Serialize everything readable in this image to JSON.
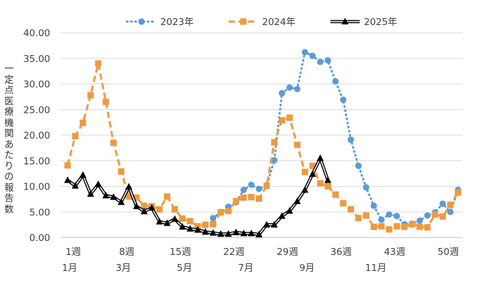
{
  "chart_data": {
    "type": "line",
    "ylabel": "一定点医療機関あたりの報告数",
    "ylim": [
      0,
      40
    ],
    "yticks": [
      "0.00",
      "5.00",
      "10.00",
      "15.00",
      "20.00",
      "25.00",
      "30.00",
      "35.00",
      "40.00"
    ],
    "xlim": [
      1,
      52
    ],
    "week_ticks": [
      {
        "week": 1,
        "label": "1週"
      },
      {
        "week": 8,
        "label": "8週"
      },
      {
        "week": 15,
        "label": "15週"
      },
      {
        "week": 22,
        "label": "22週"
      },
      {
        "week": 29,
        "label": "29週"
      },
      {
        "week": 36,
        "label": "36週"
      },
      {
        "week": 43,
        "label": "43週"
      },
      {
        "week": 50,
        "label": "50週"
      }
    ],
    "month_ticks": [
      {
        "week": 1,
        "label": "1月"
      },
      {
        "week": 8,
        "label": "3月"
      },
      {
        "week": 16,
        "label": "5月"
      },
      {
        "week": 24,
        "label": "7月"
      },
      {
        "week": 32,
        "label": "9月"
      },
      {
        "week": 41,
        "label": "11月"
      }
    ],
    "grid": true,
    "legend_position": "top",
    "series": [
      {
        "name": "2023年",
        "color": "#5B9BD5",
        "marker": "circle",
        "line_style": "dotted",
        "x": [
          20,
          21,
          22,
          23,
          24,
          25,
          26,
          27,
          28,
          29,
          30,
          31,
          32,
          33,
          34,
          35,
          36,
          37,
          38,
          39,
          40,
          41,
          42,
          43,
          44,
          45,
          46,
          47,
          48,
          49,
          50,
          51,
          52
        ],
        "y": [
          3.8,
          5.0,
          6.0,
          6.9,
          9.3,
          10.3,
          9.5,
          10.1,
          15.1,
          28.2,
          29.3,
          29.0,
          36.2,
          35.5,
          34.3,
          34.6,
          30.5,
          26.9,
          19.1,
          14.0,
          9.8,
          6.2,
          3.5,
          4.5,
          4.2,
          2.6,
          2.7,
          3.3,
          4.3,
          4.9,
          6.6,
          5.0,
          9.3
        ]
      },
      {
        "name": "2024年",
        "color": "#ED9B40",
        "marker": "square",
        "line_style": "dashed",
        "x": [
          1,
          2,
          3,
          4,
          5,
          6,
          7,
          8,
          9,
          10,
          11,
          12,
          13,
          14,
          15,
          16,
          17,
          18,
          19,
          20,
          21,
          22,
          23,
          24,
          25,
          26,
          27,
          28,
          29,
          30,
          31,
          32,
          33,
          34,
          35,
          36,
          37,
          38,
          39,
          40,
          41,
          42,
          43,
          44,
          45,
          46,
          47,
          48,
          49,
          50,
          51,
          52
        ],
        "y": [
          14.1,
          19.8,
          22.4,
          27.8,
          34.0,
          26.5,
          18.5,
          12.9,
          8.0,
          7.8,
          6.2,
          6.1,
          5.5,
          8.0,
          5.5,
          3.7,
          3.2,
          2.2,
          2.5,
          2.6,
          4.9,
          5.2,
          7.1,
          7.8,
          7.9,
          7.6,
          10.1,
          18.6,
          22.9,
          23.4,
          18.1,
          12.8,
          14.0,
          10.6,
          10.0,
          8.4,
          6.7,
          5.5,
          3.8,
          4.3,
          2.1,
          2.2,
          1.6,
          2.2,
          2.1,
          2.6,
          2.1,
          2.0,
          4.5,
          4.1,
          6.4,
          8.8
        ]
      },
      {
        "name": "2025年",
        "color": "#000000",
        "marker": "triangle",
        "line_style": "double",
        "x": [
          1,
          2,
          3,
          4,
          5,
          6,
          7,
          8,
          9,
          10,
          11,
          12,
          13,
          14,
          15,
          16,
          17,
          18,
          19,
          20,
          21,
          22,
          23,
          24,
          25,
          26,
          27,
          28,
          29,
          30,
          31,
          32,
          33,
          34,
          35
        ],
        "y": [
          11.2,
          10.1,
          12.2,
          8.5,
          10.4,
          8.2,
          7.9,
          6.9,
          9.9,
          6.1,
          5.1,
          5.8,
          3.1,
          2.8,
          3.6,
          2.1,
          1.7,
          1.5,
          1.1,
          0.9,
          0.7,
          0.7,
          1.0,
          0.8,
          0.8,
          0.6,
          2.5,
          2.5,
          4.2,
          5.2,
          7.1,
          9.3,
          12.4,
          15.5,
          11.2
        ]
      }
    ]
  }
}
